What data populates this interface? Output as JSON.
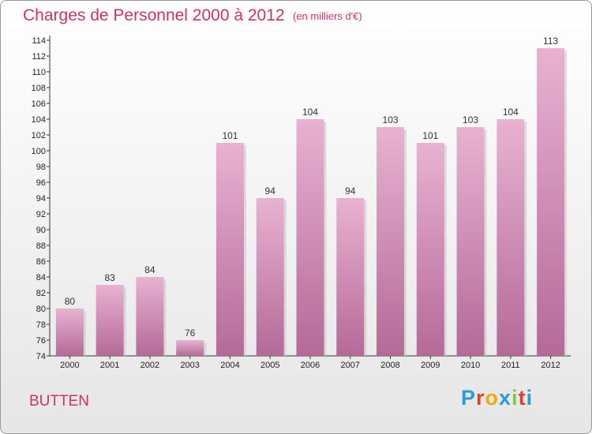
{
  "title": "Charges de Personnel 2000 à 2012",
  "subtitle": "(en milliers d'€)",
  "place": "BUTTEN",
  "logo": {
    "letters": [
      "P",
      "r",
      "o",
      "x",
      "i",
      "t",
      "i"
    ],
    "colors": [
      "#2a9be0",
      "#e23e28",
      "#f2a90c",
      "#2a9be0",
      "#8cc63f",
      "#e23e28",
      "#2a9be0"
    ]
  },
  "colors": {
    "bar": "#d988b6",
    "bar_top": "#e8b2d2",
    "bar_bottom": "#b46a97",
    "text": "#d0306a"
  },
  "chart_data": {
    "type": "bar",
    "title": "Charges de Personnel 2000 à 2012",
    "subtitle": "(en milliers d'€)",
    "categories": [
      "2000",
      "2001",
      "2002",
      "2003",
      "2004",
      "2005",
      "2006",
      "2007",
      "2008",
      "2009",
      "2010",
      "2011",
      "2012"
    ],
    "values": [
      80,
      83,
      84,
      76,
      101,
      94,
      104,
      94,
      103,
      101,
      103,
      104,
      113
    ],
    "ylim": [
      74,
      114
    ],
    "yticks": [
      74,
      76,
      78,
      80,
      82,
      84,
      86,
      88,
      90,
      92,
      94,
      96,
      98,
      100,
      102,
      104,
      106,
      108,
      110,
      112,
      114
    ],
    "grid": false,
    "xlabel": "",
    "ylabel": ""
  }
}
